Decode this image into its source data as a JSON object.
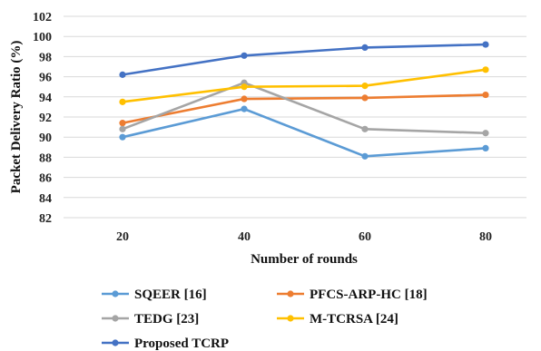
{
  "chart_data": {
    "type": "line",
    "title": "",
    "xlabel": "Number of rounds",
    "ylabel": "Packet Delivery Ratio (%)",
    "x": [
      20,
      40,
      60,
      80
    ],
    "ylim": [
      82,
      102
    ],
    "yticks": [
      82,
      84,
      86,
      88,
      90,
      92,
      94,
      96,
      98,
      100,
      102
    ],
    "grid": true,
    "legend_position": "bottom",
    "series": [
      {
        "name": "SQEER [16]",
        "color": "#5b9bd5",
        "values": [
          90.0,
          92.8,
          88.1,
          88.9
        ]
      },
      {
        "name": "PFCS-ARP-HC [18]",
        "color": "#ed7d31",
        "values": [
          91.4,
          93.8,
          93.9,
          94.2
        ]
      },
      {
        "name": "TEDG [23]",
        "color": "#a5a5a5",
        "values": [
          90.8,
          95.4,
          90.8,
          90.4
        ]
      },
      {
        "name": "M-TCRSA [24]",
        "color": "#ffc000",
        "values": [
          93.5,
          95.0,
          95.1,
          96.7
        ]
      },
      {
        "name": "Proposed TCRP",
        "color": "#4472c4",
        "values": [
          96.2,
          98.1,
          98.9,
          99.2
        ]
      }
    ]
  }
}
